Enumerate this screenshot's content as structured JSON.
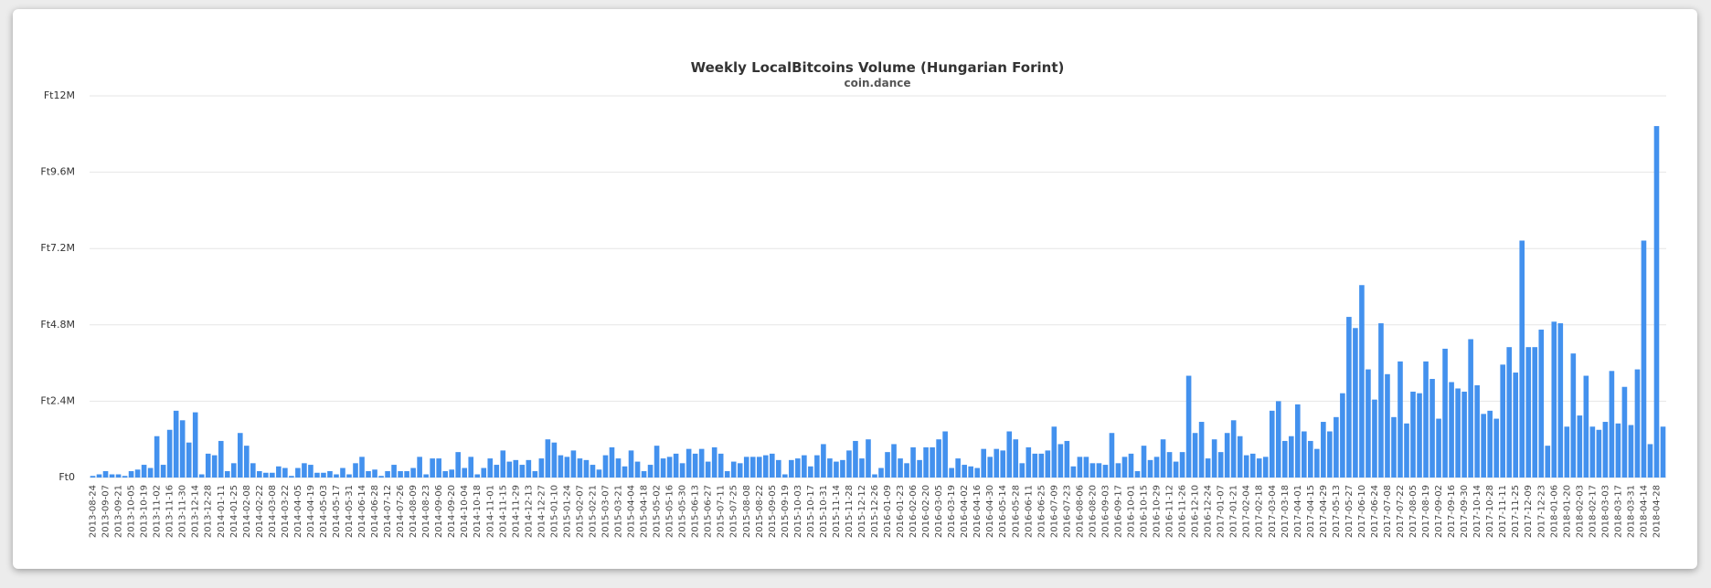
{
  "chart_data": {
    "type": "bar",
    "title": "Weekly LocalBitcoins Volume (Hungarian Forint)",
    "subtitle": "coin.dance",
    "color": "#4391ee",
    "grid": true,
    "ylim": [
      0,
      12000000
    ],
    "yticks": [
      {
        "value": 0,
        "label": "Ft0"
      },
      {
        "value": 2400000,
        "label": "Ft2.4M"
      },
      {
        "value": 4800000,
        "label": "Ft4.8M"
      },
      {
        "value": 7200000,
        "label": "Ft7.2M"
      },
      {
        "value": 9600000,
        "label": "Ft9.6M"
      },
      {
        "value": 12000000,
        "label": "Ft12M"
      }
    ],
    "categories": [
      "2013-08-24",
      null,
      "2013-09-07",
      null,
      "2013-09-21",
      null,
      "2013-10-05",
      null,
      "2013-10-19",
      null,
      "2013-11-02",
      null,
      "2013-11-16",
      null,
      "2013-11-30",
      null,
      "2013-12-14",
      null,
      "2013-12-28",
      null,
      "2014-01-11",
      null,
      "2014-01-25",
      null,
      "2014-02-08",
      null,
      "2014-02-22",
      null,
      "2014-03-08",
      null,
      "2014-03-22",
      null,
      "2014-04-05",
      null,
      "2014-04-19",
      null,
      "2014-05-03",
      null,
      "2014-05-17",
      null,
      "2014-05-31",
      null,
      "2014-06-14",
      null,
      "2014-06-28",
      null,
      "2014-07-12",
      null,
      "2014-07-26",
      null,
      "2014-08-09",
      null,
      "2014-08-23",
      null,
      "2014-09-06",
      null,
      "2014-09-20",
      null,
      "2014-10-04",
      null,
      "2014-10-18",
      null,
      "2014-11-01",
      null,
      "2014-11-15",
      null,
      "2014-11-29",
      null,
      "2014-12-13",
      null,
      "2014-12-27",
      null,
      "2015-01-10",
      null,
      "2015-01-24",
      null,
      "2015-02-07",
      null,
      "2015-02-21",
      null,
      "2015-03-07",
      null,
      "2015-03-21",
      null,
      "2015-04-04",
      null,
      "2015-04-18",
      null,
      "2015-05-02",
      null,
      "2015-05-16",
      null,
      "2015-05-30",
      null,
      "2015-06-13",
      null,
      "2015-06-27",
      null,
      "2015-07-11",
      null,
      "2015-07-25",
      null,
      "2015-08-08",
      null,
      "2015-08-22",
      null,
      "2015-09-05",
      null,
      "2015-09-19",
      null,
      "2015-10-03",
      null,
      "2015-10-17",
      null,
      "2015-10-31",
      null,
      "2015-11-14",
      null,
      "2015-11-28",
      null,
      "2015-12-12",
      null,
      "2015-12-26",
      null,
      "2016-01-09",
      null,
      "2016-01-23",
      null,
      "2016-02-06",
      null,
      "2016-02-20",
      null,
      "2016-03-05",
      null,
      "2016-03-19",
      null,
      "2016-04-02",
      null,
      "2016-04-16",
      null,
      "2016-04-30",
      null,
      "2016-05-14",
      null,
      "2016-05-28",
      null,
      "2016-06-11",
      null,
      "2016-06-25",
      null,
      "2016-07-09",
      null,
      "2016-07-23",
      null,
      "2016-08-06",
      null,
      "2016-08-20",
      null,
      "2016-09-03",
      null,
      "2016-09-17",
      null,
      "2016-10-01",
      null,
      "2016-10-15",
      null,
      "2016-10-29",
      null,
      "2016-11-12",
      null,
      "2016-11-26",
      null,
      "2016-12-10",
      null,
      "2016-12-24",
      null,
      "2017-01-07",
      null,
      "2017-01-21",
      null,
      "2017-02-04",
      null,
      "2017-02-18",
      null,
      "2017-03-04",
      null,
      "2017-03-18",
      null,
      "2017-04-01",
      null,
      "2017-04-15",
      null,
      "2017-04-29",
      null,
      "2017-05-13",
      null,
      "2017-05-27",
      null,
      "2017-06-10",
      null,
      "2017-06-24",
      null,
      "2017-07-08",
      null,
      "2017-07-22",
      null,
      "2017-08-05",
      null,
      "2017-08-19",
      null,
      "2017-09-02",
      null,
      "2017-09-16",
      null,
      "2017-09-30",
      null,
      "2017-10-14",
      null,
      "2017-10-28",
      null,
      "2017-11-11",
      null,
      "2017-11-25",
      null,
      "2017-12-09",
      null,
      "2017-12-23",
      null,
      "2018-01-06",
      null,
      "2018-01-20",
      null,
      "2018-02-03",
      null,
      "2018-02-17",
      null,
      "2018-03-03",
      null,
      "2018-03-17",
      null,
      "2018-03-31",
      null,
      "2018-04-14",
      null,
      "2018-04-28",
      null
    ],
    "values": [
      50000,
      100000,
      200000,
      100000,
      100000,
      50000,
      200000,
      250000,
      400000,
      300000,
      1300000,
      400000,
      1500000,
      2100000,
      1800000,
      1100000,
      2050000,
      100000,
      750000,
      700000,
      1150000,
      200000,
      450000,
      1400000,
      1000000,
      450000,
      200000,
      150000,
      150000,
      350000,
      300000,
      50000,
      300000,
      450000,
      400000,
      150000,
      150000,
      200000,
      100000,
      300000,
      100000,
      450000,
      650000,
      200000,
      250000,
      50000,
      200000,
      400000,
      200000,
      200000,
      300000,
      650000,
      100000,
      600000,
      600000,
      200000,
      250000,
      800000,
      300000,
      650000,
      100000,
      300000,
      600000,
      400000,
      850000,
      500000,
      550000,
      400000,
      550000,
      200000,
      600000,
      1200000,
      1100000,
      700000,
      650000,
      850000,
      600000,
      550000,
      400000,
      250000,
      700000,
      950000,
      600000,
      350000,
      850000,
      500000,
      200000,
      400000,
      1000000,
      600000,
      650000,
      750000,
      450000,
      900000,
      750000,
      900000,
      500000,
      950000,
      750000,
      200000,
      500000,
      450000,
      650000,
      650000,
      650000,
      700000,
      750000,
      550000,
      100000,
      550000,
      600000,
      700000,
      350000,
      700000,
      1050000,
      600000,
      500000,
      550000,
      850000,
      1150000,
      600000,
      1200000,
      100000,
      300000,
      800000,
      1050000,
      600000,
      450000,
      950000,
      550000,
      950000,
      950000,
      1200000,
      1450000,
      300000,
      600000,
      400000,
      350000,
      300000,
      900000,
      650000,
      900000,
      850000,
      1450000,
      1200000,
      450000,
      950000,
      750000,
      750000,
      850000,
      1600000,
      1050000,
      1150000,
      350000,
      650000,
      650000,
      450000,
      450000,
      400000,
      1400000,
      450000,
      650000,
      750000,
      200000,
      1000000,
      550000,
      650000,
      1200000,
      800000,
      500000,
      800000,
      3200000,
      1400000,
      1750000,
      600000,
      1200000,
      800000,
      1400000,
      1800000,
      1300000,
      700000,
      750000,
      600000,
      650000,
      2100000,
      2400000,
      1150000,
      1300000,
      2300000,
      1450000,
      1150000,
      900000,
      1750000,
      1450000,
      1900000,
      2650000,
      5050000,
      4700000,
      6050000,
      3400000,
      2450000,
      4850000,
      3250000,
      1900000,
      3650000,
      1700000,
      2700000,
      2650000,
      3650000,
      3100000,
      1850000,
      4050000,
      3000000,
      2800000,
      2700000,
      4350000,
      2900000,
      2000000,
      2100000,
      1850000,
      3550000,
      4100000,
      3300000,
      7450000,
      4100000,
      4100000,
      4650000,
      1000000,
      4900000,
      4850000,
      1600000,
      3900000,
      1950000,
      3200000,
      1600000,
      1500000,
      1750000,
      3350000,
      1700000,
      2850000,
      1650000,
      3400000,
      7450000,
      1050000,
      11050000,
      1600000
    ]
  }
}
